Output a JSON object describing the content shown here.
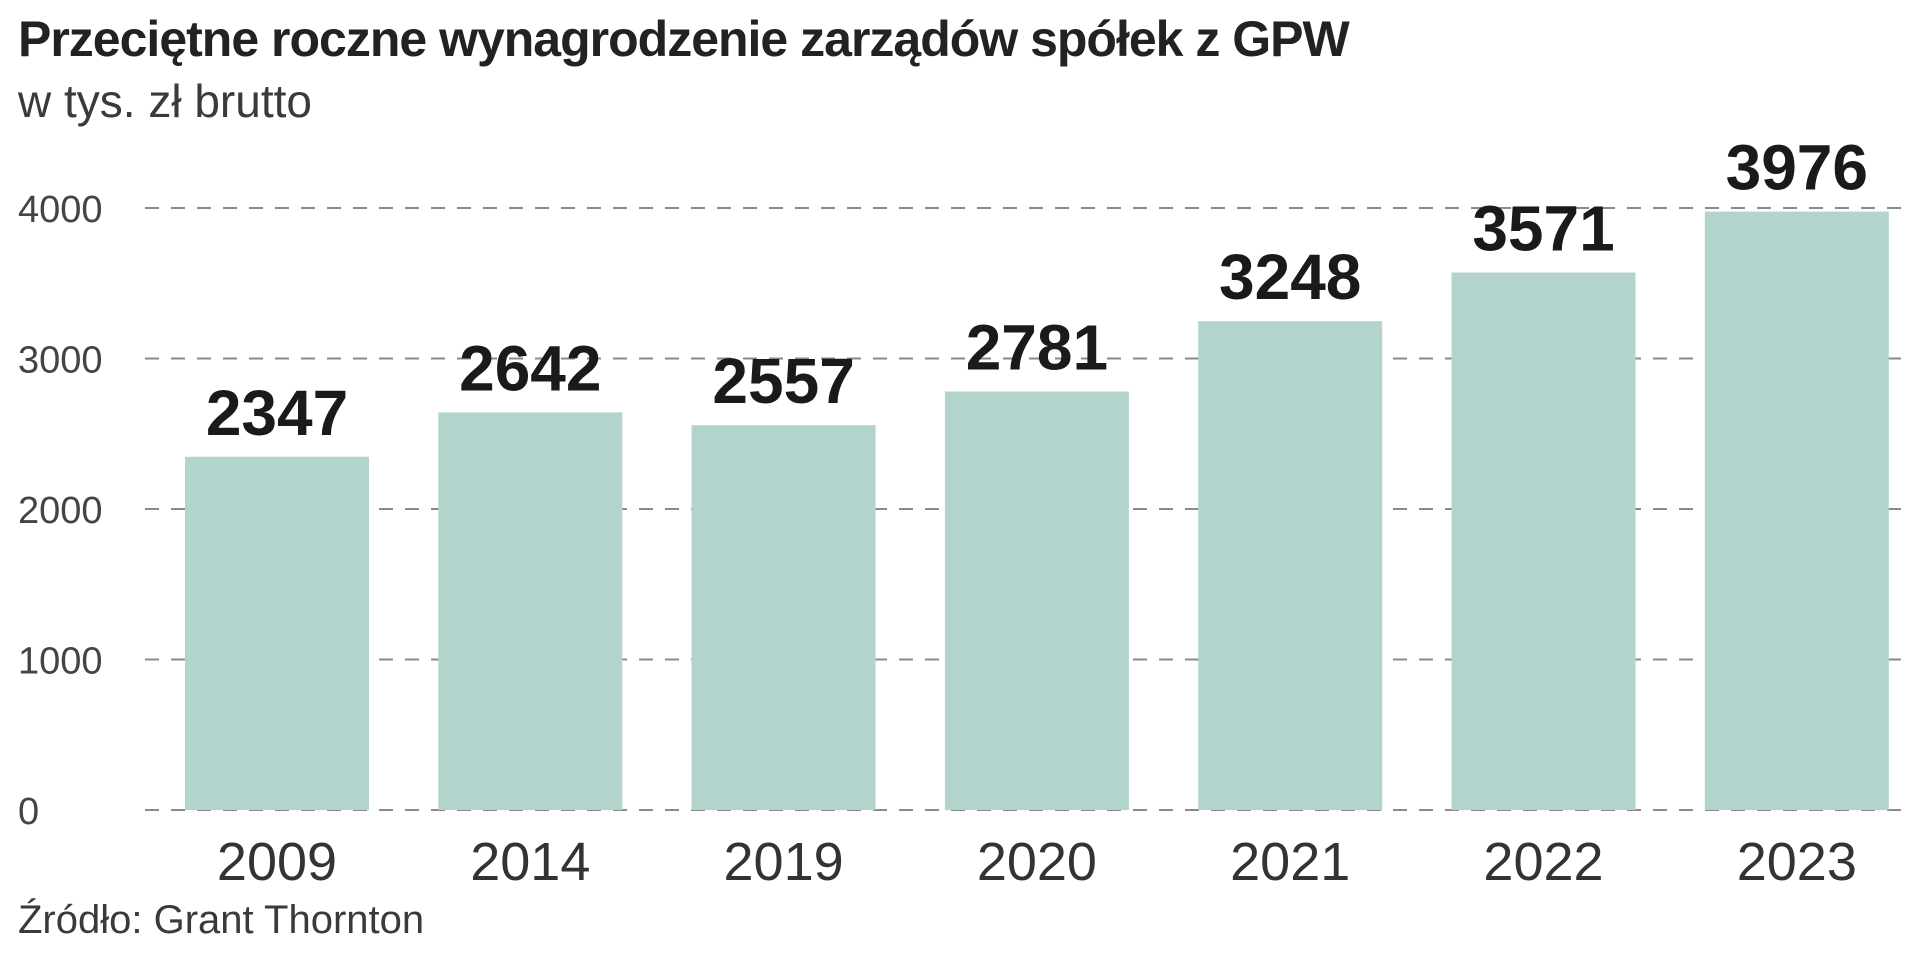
{
  "chart_data": {
    "type": "bar",
    "title": "Przeciętne roczne wynagrodzenie zarządów spółek z GPW",
    "subtitle": "w tys. zł brutto",
    "source": "Źródło: Grant Thornton",
    "categories": [
      "2009",
      "2014",
      "2019",
      "2020",
      "2021",
      "2022",
      "2023"
    ],
    "values": [
      2347,
      2642,
      2557,
      2781,
      3248,
      3571,
      3976
    ],
    "value_labels": [
      "2347",
      "2642",
      "2557",
      "2781",
      "3248",
      "3571",
      "3976"
    ],
    "yticks": [
      0,
      1000,
      2000,
      3000,
      4000
    ],
    "ytick_labels": [
      "0",
      "1000",
      "2000",
      "3000",
      "4000"
    ],
    "ylim": [
      0,
      4000
    ],
    "grid": true,
    "bar_color": "#b3d4cd"
  }
}
